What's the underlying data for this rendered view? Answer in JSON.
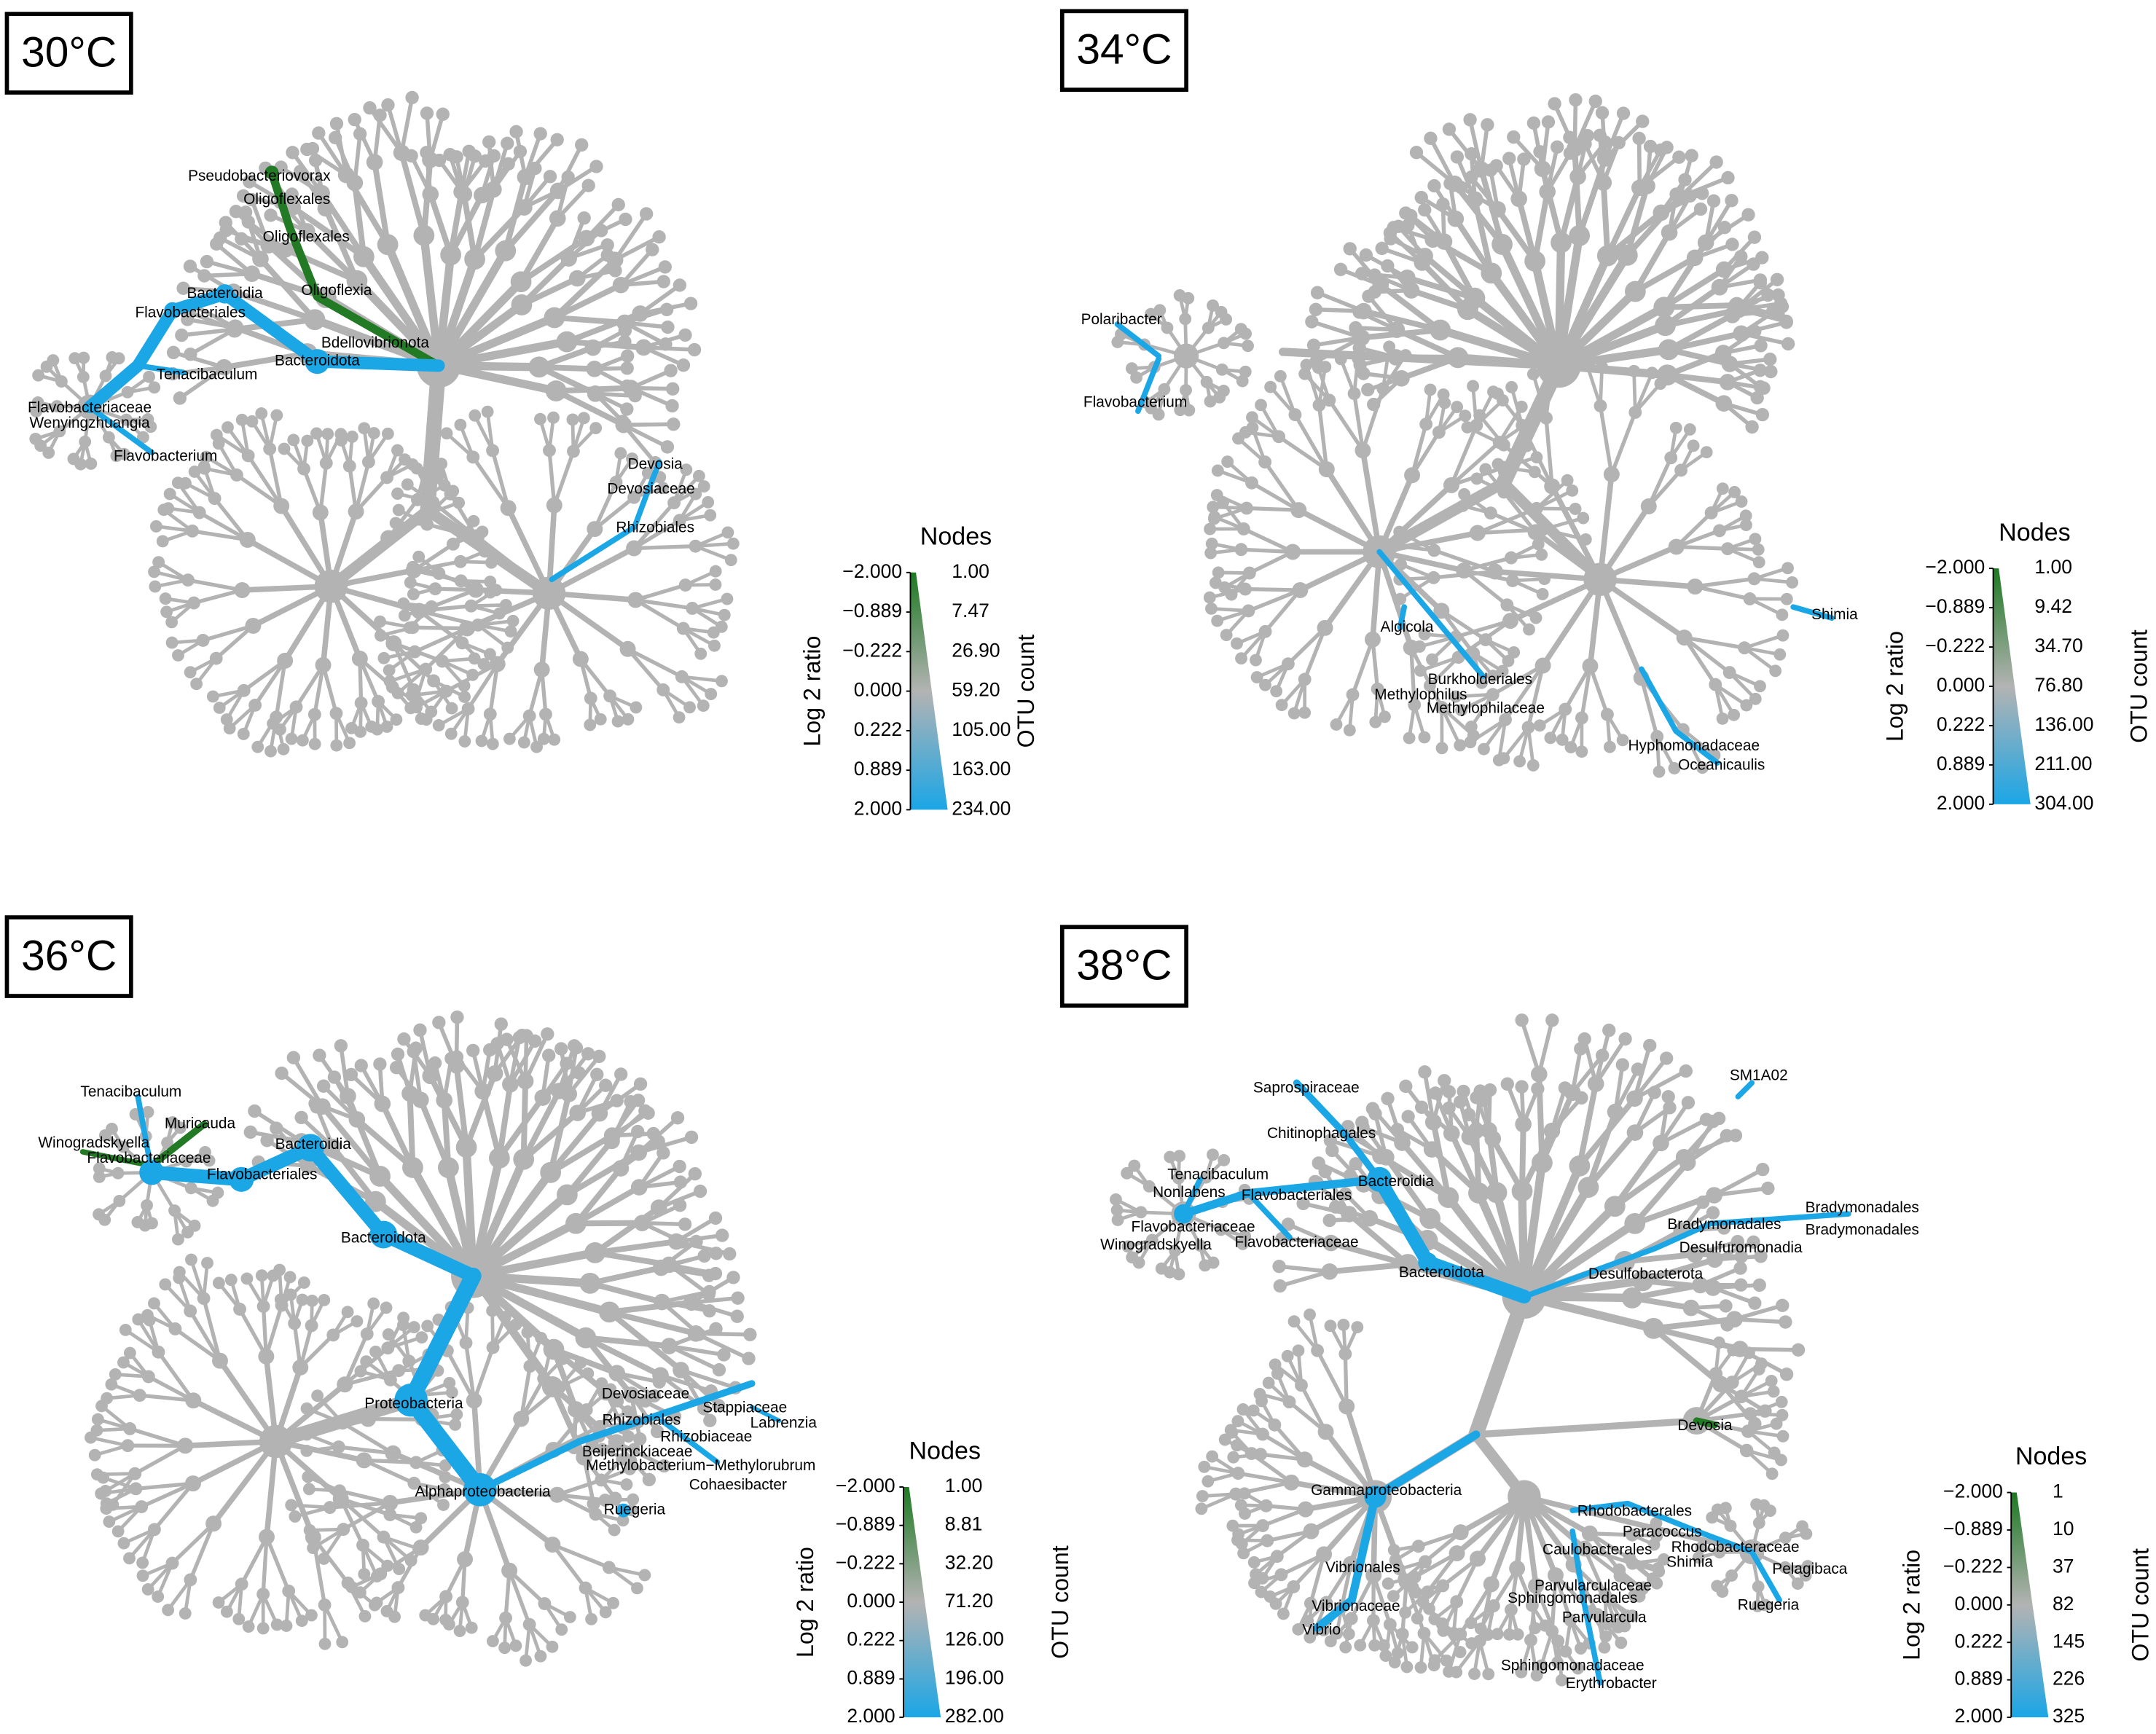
{
  "panels": [
    {
      "title": "30°C",
      "labels": [
        "Pseudobacteriovorax",
        "Oligoflexales",
        "Oligoflexales",
        "Oligoflexia",
        "Bacteroidia",
        "Flavobacteriales",
        "Bdellovibrionota",
        "Bacteroidota",
        "Tenacibaculum",
        "Flavobacteriaceae",
        "Wenyingzhuangia",
        "Flavobacterium",
        "Devosia",
        "Devosiaceae",
        "Rhizobiales"
      ],
      "legend": {
        "heading": "Nodes",
        "ratio_label": "Log 2 ratio",
        "count_label": "OTU count",
        "ratio_ticks": [
          "−2.000",
          "−0.889",
          "−0.222",
          "0.000",
          "0.222",
          "0.889",
          "2.000"
        ],
        "count_ticks": [
          "1.00",
          "7.47",
          "26.90",
          "59.20",
          "105.00",
          "163.00",
          "234.00"
        ]
      }
    },
    {
      "title": "34°C",
      "labels": [
        "Polaribacter",
        "Flavobacterium",
        "Shimia",
        "Algicola",
        "Burkholderiales",
        "Methylophilus",
        "Methylophilaceae",
        "Hyphomonadaceae",
        "Oceanicaulis"
      ],
      "legend": {
        "heading": "Nodes",
        "ratio_label": "Log 2 ratio",
        "count_label": "OTU count",
        "ratio_ticks": [
          "−2.000",
          "−0.889",
          "−0.222",
          "0.000",
          "0.222",
          "0.889",
          "2.000"
        ],
        "count_ticks": [
          "1.00",
          "9.42",
          "34.70",
          "76.80",
          "136.00",
          "211.00",
          "304.00"
        ]
      }
    },
    {
      "title": "36°C",
      "labels": [
        "Tenacibaculum",
        "Muricauda",
        "Winogradskyella",
        "Flavobacteriaceae",
        "Bacteroidia",
        "Flavobacteriales",
        "Bacteroidota",
        "Proteobacteria",
        "Devosiaceae",
        "Stappiaceae",
        "Labrenzia",
        "Rhizobiales",
        "Rhizobiaceae",
        "Beijerinckiaceae",
        "Methylobacterium−Methylorubrum",
        "Cohaesibacter",
        "Alphaproteobacteria",
        "Ruegeria"
      ],
      "legend": {
        "heading": "Nodes",
        "ratio_label": "Log 2 ratio",
        "count_label": "OTU count",
        "ratio_ticks": [
          "−2.000",
          "−0.889",
          "−0.222",
          "0.000",
          "0.222",
          "0.889",
          "2.000"
        ],
        "count_ticks": [
          "1.00",
          "8.81",
          "32.20",
          "71.20",
          "126.00",
          "196.00",
          "282.00"
        ]
      }
    },
    {
      "title": "38°C",
      "labels": [
        "SM1A02",
        "Saprospiraceae",
        "Chitinophagales",
        "Tenacibaculum",
        "Nonlabens",
        "Flavobacteriales",
        "Bacteroidia",
        "Flavobacteriaceae",
        "Winogradskyella",
        "Flavobacteriaceae",
        "Bacteroidota",
        "Bradymonadales",
        "Bradymonadales",
        "Bradymonadales",
        "Desulfuromonadia",
        "Desulfobacterota",
        "Devosia",
        "Gammaproteobacteria",
        "Rhodobacterales",
        "Paracoccus",
        "Rhodobacteraceae",
        "Caulobacterales",
        "Shimia",
        "Pelagibaca",
        "Parvularculaceae",
        "Sphingomonadales",
        "Parvularcula",
        "Ruegeria",
        "Vibrionales",
        "Vibrionaceae",
        "Vibrio",
        "Sphingomonadaceae",
        "Erythrobacter"
      ],
      "legend": {
        "heading": "Nodes",
        "ratio_label": "Log 2 ratio",
        "count_label": "OTU count",
        "ratio_ticks": [
          "−2.000",
          "−0.889",
          "−0.222",
          "0.000",
          "0.222",
          "0.889",
          "2.000"
        ],
        "count_ticks": [
          "1",
          "10",
          "37",
          "82",
          "145",
          "226",
          "325"
        ]
      }
    }
  ]
}
